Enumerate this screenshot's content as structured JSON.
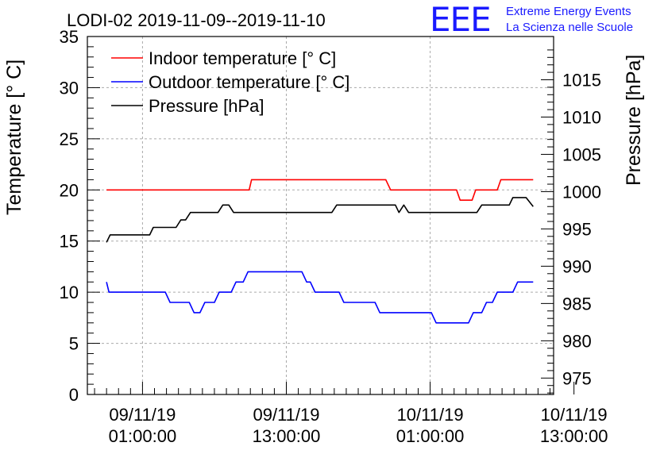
{
  "chart_data": {
    "type": "line",
    "title": "LODI-02 2019-11-09--2019-11-10",
    "ylabel": "Temperature [° C]",
    "ylabel_right": "Pressure [hPa]",
    "xlabel": "",
    "ylim": [
      0,
      35
    ],
    "ylim_right": [
      972.8,
      1020.8
    ],
    "y_ticks": [
      0,
      5,
      10,
      15,
      20,
      25,
      30,
      35
    ],
    "y_ticks_right": [
      975,
      980,
      985,
      990,
      995,
      1000,
      1005,
      1010,
      1015
    ],
    "xlim_hours": [
      -3.6,
      35.3
    ],
    "x_ticks": [
      {
        "date": "09/11/19",
        "time": "01:00:00",
        "hour": 1
      },
      {
        "date": "09/11/19",
        "time": "13:00:00",
        "hour": 13
      },
      {
        "date": "10/11/19",
        "time": "01:00:00",
        "hour": 25
      },
      {
        "date": "10/11/19",
        "time": "13:00:00",
        "hour": 37
      }
    ],
    "grid": true,
    "legend_position": "top-left",
    "series": [
      {
        "name": "Indoor temperature [° C]",
        "color": "#ff0000",
        "axis": "left",
        "points": [
          [
            -2.0,
            20
          ],
          [
            9.9,
            20
          ],
          [
            10.1,
            21
          ],
          [
            21.3,
            21
          ],
          [
            21.7,
            20
          ],
          [
            27.2,
            20
          ],
          [
            27.5,
            19
          ],
          [
            28.5,
            19
          ],
          [
            28.8,
            20
          ],
          [
            30.6,
            20
          ],
          [
            30.9,
            21
          ],
          [
            33.6,
            21
          ]
        ]
      },
      {
        "name": "Outdoor temperature [° C]",
        "color": "#0000ff",
        "axis": "left",
        "points": [
          [
            -2.0,
            11
          ],
          [
            -1.8,
            10
          ],
          [
            2.9,
            10
          ],
          [
            3.3,
            9
          ],
          [
            4.9,
            9
          ],
          [
            5.3,
            8
          ],
          [
            5.8,
            8
          ],
          [
            6.2,
            9
          ],
          [
            7.0,
            9
          ],
          [
            7.4,
            10
          ],
          [
            8.4,
            10
          ],
          [
            8.8,
            11
          ],
          [
            9.4,
            11
          ],
          [
            9.8,
            12
          ],
          [
            14.3,
            12
          ],
          [
            14.7,
            11
          ],
          [
            15.0,
            11
          ],
          [
            15.4,
            10
          ],
          [
            17.4,
            10
          ],
          [
            17.8,
            9
          ],
          [
            20.4,
            9
          ],
          [
            20.8,
            8
          ],
          [
            25.1,
            8
          ],
          [
            25.5,
            7
          ],
          [
            28.2,
            7
          ],
          [
            28.6,
            8
          ],
          [
            29.3,
            8
          ],
          [
            29.7,
            9
          ],
          [
            30.2,
            9
          ],
          [
            30.6,
            10
          ],
          [
            31.9,
            10
          ],
          [
            32.3,
            11
          ],
          [
            33.6,
            11
          ]
        ]
      },
      {
        "name": "Pressure [hPa]",
        "color": "#000000",
        "axis": "right",
        "points": [
          [
            -2.0,
            993.2
          ],
          [
            -1.7,
            994.2
          ],
          [
            1.6,
            994.2
          ],
          [
            1.9,
            995.2
          ],
          [
            3.8,
            995.2
          ],
          [
            4.2,
            996.2
          ],
          [
            4.6,
            996.2
          ],
          [
            5.0,
            997.2
          ],
          [
            7.3,
            997.2
          ],
          [
            7.7,
            998.2
          ],
          [
            8.2,
            998.2
          ],
          [
            8.6,
            997.2
          ],
          [
            16.8,
            997.2
          ],
          [
            17.2,
            998.2
          ],
          [
            22.1,
            998.2
          ],
          [
            22.4,
            997.2
          ],
          [
            22.8,
            998.2
          ],
          [
            23.2,
            997.2
          ],
          [
            28.9,
            997.2
          ],
          [
            29.3,
            998.2
          ],
          [
            31.6,
            998.2
          ],
          [
            31.9,
            999.2
          ],
          [
            33.0,
            999.2
          ],
          [
            33.6,
            998.0
          ]
        ]
      }
    ]
  },
  "logo": {
    "letters": "EEE",
    "line1": "Extreme Energy Events",
    "line2": "La Scienza nelle Scuole",
    "color": "#1a1aff"
  }
}
